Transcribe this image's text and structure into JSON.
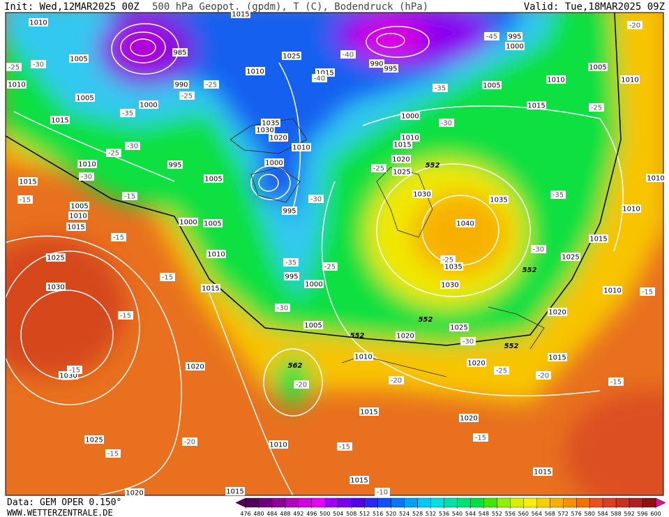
{
  "header": {
    "init": "Init: Wed,12MAR2025 00Z",
    "title": "500 hPa Geopot. (gpdm), T (C), Bodendruck (hPa)",
    "valid": "Valid: Tue,18MAR2025 09Z"
  },
  "footer": {
    "data_source": "Data: GEM OPER 0.150°",
    "website": "WWW.WETTERZENTRALE.DE"
  },
  "map": {
    "isobar_labels": [
      1010,
      1005,
      1010,
      1005,
      1015,
      1000,
      990,
      985,
      995,
      1010,
      1025,
      1015,
      1035,
      1030,
      1020,
      1010,
      1000,
      1005,
      995,
      1000,
      1005,
      1010,
      1015,
      995,
      1000,
      1005,
      1015,
      1010,
      1005,
      1010,
      1015,
      1025,
      1030,
      1030,
      1020,
      1025,
      1020,
      1015,
      1010,
      1015,
      1020,
      1015,
      1015,
      1010,
      1020,
      1020,
      1015,
      1025,
      1020,
      1010,
      1025,
      1015,
      1010,
      1010,
      1035,
      1040,
      1035,
      1030,
      1030,
      1025,
      1020,
      1015,
      1010,
      1000,
      1005,
      1010,
      1015,
      1005,
      1010,
      1000,
      995,
      990,
      995,
      1015
    ],
    "temperature_labels": [
      -20,
      -25,
      -30,
      -25,
      -25,
      -35,
      -25,
      -30,
      -30,
      -15,
      -15,
      -15,
      -15,
      -15,
      -15,
      -15,
      -20,
      -30,
      -35,
      -25,
      -30,
      -20,
      -20,
      -15,
      -10,
      -15,
      -25,
      -20,
      -15,
      -30,
      -25,
      -30,
      -35,
      -25,
      -30,
      -35,
      -40,
      -45,
      -40,
      -25,
      -15
    ],
    "height_labels": [
      552,
      552,
      552,
      552,
      552,
      562
    ]
  },
  "colorbar": {
    "ticks": [
      476,
      480,
      484,
      488,
      492,
      496,
      500,
      504,
      508,
      512,
      516,
      520,
      524,
      528,
      532,
      536,
      540,
      544,
      548,
      552,
      556,
      560,
      564,
      568,
      572,
      576,
      580,
      584,
      588,
      592,
      596,
      600
    ],
    "colors": [
      "#500058",
      "#70007a",
      "#90009a",
      "#b000c0",
      "#d000e0",
      "#e800f8",
      "#a000f0",
      "#7800f0",
      "#5000e8",
      "#2828f0",
      "#1050f8",
      "#0078f8",
      "#00a0f8",
      "#00c8f8",
      "#00e0e0",
      "#00e0a8",
      "#00e070",
      "#00e040",
      "#40e800",
      "#90f000",
      "#d8f000",
      "#f8f000",
      "#f8d000",
      "#f8b000",
      "#f89000",
      "#f07000",
      "#e85020",
      "#d84020",
      "#c83020",
      "#b02020",
      "#901010"
    ]
  }
}
